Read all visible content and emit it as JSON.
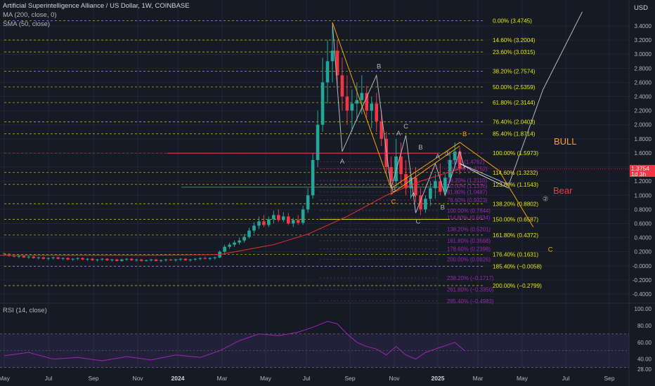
{
  "header": {
    "symbol": "Artificial Superintelligence Alliance / US Dollar, 1W, COINBASE",
    "ma": "MA (200, close, 0)",
    "sma": "SMA (50, close)",
    "rsi": "RSI (14, close)",
    "currency": "USD"
  },
  "price_tag": {
    "value": "1.3754",
    "countdown": "1d 3h"
  },
  "labels": {
    "bull": "BULL",
    "bear": "Bear"
  },
  "colors": {
    "background": "#161a25",
    "up": "#26a69a",
    "down": "#f23645",
    "fib_upper": "#e6e600",
    "fib_lower": "#9c27b0",
    "sma": "#d32f2f",
    "wave": "#b2b5be",
    "fan": "#f7a600",
    "rsi_line": "#9c27b0"
  },
  "chart_data": {
    "type": "candlestick",
    "x_ticks": [
      "May",
      "Jul",
      "Sep",
      "Nov",
      "2024",
      "Mar",
      "May",
      "Jul",
      "Sep",
      "Nov",
      "2025",
      "Mar",
      "May",
      "Jul",
      "Sep"
    ],
    "y_ticks": [
      "3.4000",
      "3.2000",
      "3.0000",
      "2.8000",
      "2.6000",
      "2.4000",
      "2.2000",
      "2.0000",
      "1.8000",
      "1.6000",
      "1.4000",
      "1.2000",
      "1.0000",
      "0.8000",
      "0.6000",
      "0.4000",
      "0.2000",
      "-0.0000",
      "-0.2000",
      "-0.4000"
    ],
    "ylim": [
      -0.5,
      3.6
    ],
    "rsi_ticks": [
      "100.00",
      "80.00",
      "60.00",
      "40.00",
      "28.00"
    ],
    "fib_upper": [
      {
        "label": "0.00% (3.4745)",
        "value": 3.4745
      },
      {
        "label": "14.60% (3.2004)",
        "value": 3.2004
      },
      {
        "label": "23.60% (3.0315)",
        "value": 3.0315
      },
      {
        "label": "38.20% (2.7574)",
        "value": 2.7574
      },
      {
        "label": "50.00% (2.5359)",
        "value": 2.5359
      },
      {
        "label": "61.80% (2.3144)",
        "value": 2.3144
      },
      {
        "label": "76.40% (2.0403)",
        "value": 2.0403
      },
      {
        "label": "85.40% (1.8714)",
        "value": 1.8714
      },
      {
        "label": "100.00% (1.5973)",
        "value": 1.5973
      },
      {
        "label": "114.60% (1.3232)",
        "value": 1.3232
      },
      {
        "label": "123.60% (1.1543)",
        "value": 1.1543
      },
      {
        "label": "138.20% (0.8802)",
        "value": 0.8802
      },
      {
        "label": "150.00% (0.6587)",
        "value": 0.6587
      },
      {
        "label": "161.80% (0.4372)",
        "value": 0.4372
      },
      {
        "label": "176.40% (0.1631)",
        "value": 0.1631
      },
      {
        "label": "185.40% (−0.0058)",
        "value": -0.0058
      },
      {
        "label": "200.00% (−0.2799)",
        "value": -0.2799
      }
    ],
    "fib_lower": [
      {
        "label": "0.00% (1.4762)",
        "value": 1.4762
      },
      {
        "label": "14.60% (1.3752)",
        "value": 1.3752
      },
      {
        "label": "38.20% (1.2110)",
        "value": 1.211
      },
      {
        "label": "50.00% (1.1336)",
        "value": 1.1336
      },
      {
        "label": "61.80% (1.0487)",
        "value": 1.0487
      },
      {
        "label": "78.60% (0.9323)",
        "value": 0.9323
      },
      {
        "label": "100.00% (0.7844)",
        "value": 0.7844
      },
      {
        "label": "114.60% (0.6834)",
        "value": 0.6834
      },
      {
        "label": "138.20% (0.5201)",
        "value": 0.5201
      },
      {
        "label": "161.80% (0.3568)",
        "value": 0.3568
      },
      {
        "label": "178.60% (0.2398)",
        "value": 0.2398
      },
      {
        "label": "200.00% (0.0926)",
        "value": 0.0926
      },
      {
        "label": "238.20% (−0.1717)",
        "value": -0.1717
      },
      {
        "label": "261.80% (−0.3350)",
        "value": -0.335
      },
      {
        "label": "285.40% (−0.4983)",
        "value": -0.4983
      }
    ],
    "candles": [
      [
        0.18,
        0.18,
        0.14,
        0.17
      ],
      [
        0.17,
        0.18,
        0.13,
        0.14
      ],
      [
        0.14,
        0.15,
        0.12,
        0.13
      ],
      [
        0.13,
        0.15,
        0.11,
        0.14
      ],
      [
        0.14,
        0.15,
        0.11,
        0.12
      ],
      [
        0.12,
        0.14,
        0.1,
        0.13
      ],
      [
        0.13,
        0.14,
        0.1,
        0.11
      ],
      [
        0.11,
        0.13,
        0.09,
        0.12
      ],
      [
        0.12,
        0.13,
        0.09,
        0.1
      ],
      [
        0.1,
        0.12,
        0.08,
        0.11
      ],
      [
        0.11,
        0.13,
        0.09,
        0.12
      ],
      [
        0.12,
        0.13,
        0.09,
        0.1
      ],
      [
        0.1,
        0.12,
        0.08,
        0.11
      ],
      [
        0.11,
        0.12,
        0.08,
        0.09
      ],
      [
        0.09,
        0.11,
        0.07,
        0.1
      ],
      [
        0.1,
        0.12,
        0.08,
        0.11
      ],
      [
        0.11,
        0.12,
        0.08,
        0.09
      ],
      [
        0.09,
        0.11,
        0.07,
        0.1
      ],
      [
        0.1,
        0.11,
        0.07,
        0.08
      ],
      [
        0.08,
        0.1,
        0.06,
        0.09
      ],
      [
        0.09,
        0.11,
        0.07,
        0.1
      ],
      [
        0.1,
        0.11,
        0.07,
        0.08
      ],
      [
        0.08,
        0.1,
        0.06,
        0.09
      ],
      [
        0.09,
        0.1,
        0.06,
        0.07
      ],
      [
        0.07,
        0.1,
        0.06,
        0.09
      ],
      [
        0.09,
        0.11,
        0.07,
        0.1
      ],
      [
        0.1,
        0.11,
        0.07,
        0.08
      ],
      [
        0.08,
        0.1,
        0.06,
        0.09
      ],
      [
        0.09,
        0.1,
        0.06,
        0.07
      ],
      [
        0.07,
        0.09,
        0.06,
        0.08
      ],
      [
        0.08,
        0.1,
        0.06,
        0.09
      ],
      [
        0.09,
        0.1,
        0.06,
        0.07
      ],
      [
        0.07,
        0.09,
        0.05,
        0.08
      ],
      [
        0.08,
        0.1,
        0.06,
        0.09
      ],
      [
        0.09,
        0.1,
        0.07,
        0.08
      ],
      [
        0.08,
        0.1,
        0.06,
        0.09
      ],
      [
        0.09,
        0.11,
        0.07,
        0.1
      ],
      [
        0.1,
        0.11,
        0.07,
        0.08
      ],
      [
        0.08,
        0.1,
        0.06,
        0.09
      ],
      [
        0.09,
        0.11,
        0.07,
        0.1
      ],
      [
        0.1,
        0.12,
        0.08,
        0.11
      ],
      [
        0.11,
        0.13,
        0.09,
        0.1
      ],
      [
        0.1,
        0.12,
        0.08,
        0.11
      ],
      [
        0.11,
        0.13,
        0.09,
        0.12
      ],
      [
        0.12,
        0.22,
        0.11,
        0.2
      ],
      [
        0.2,
        0.3,
        0.18,
        0.27
      ],
      [
        0.27,
        0.33,
        0.24,
        0.3
      ],
      [
        0.3,
        0.36,
        0.27,
        0.33
      ],
      [
        0.33,
        0.4,
        0.3,
        0.36
      ],
      [
        0.36,
        0.45,
        0.33,
        0.41
      ],
      [
        0.41,
        0.54,
        0.39,
        0.5
      ],
      [
        0.5,
        0.62,
        0.46,
        0.57
      ],
      [
        0.57,
        0.7,
        0.52,
        0.63
      ],
      [
        0.63,
        0.72,
        0.55,
        0.58
      ],
      [
        0.58,
        0.7,
        0.55,
        0.66
      ],
      [
        0.66,
        0.78,
        0.6,
        0.72
      ],
      [
        0.72,
        0.8,
        0.62,
        0.65
      ],
      [
        0.65,
        0.76,
        0.62,
        0.7
      ],
      [
        0.7,
        0.75,
        0.58,
        0.6
      ],
      [
        0.6,
        0.68,
        0.55,
        0.65
      ],
      [
        0.65,
        0.72,
        0.58,
        0.61
      ],
      [
        0.61,
        0.85,
        0.58,
        0.8
      ],
      [
        0.8,
        1.1,
        0.75,
        1.0
      ],
      [
        1.0,
        1.6,
        0.95,
        1.5
      ],
      [
        1.5,
        2.2,
        1.4,
        2.0
      ],
      [
        2.0,
        2.95,
        1.9,
        2.6
      ],
      [
        2.6,
        3.2,
        2.3,
        2.9
      ],
      [
        2.9,
        3.4,
        2.6,
        3.05
      ],
      [
        3.05,
        3.2,
        2.5,
        2.7
      ],
      [
        2.7,
        2.95,
        2.2,
        2.4
      ],
      [
        2.4,
        2.7,
        2.0,
        2.2
      ],
      [
        2.2,
        2.5,
        1.9,
        2.3
      ],
      [
        2.3,
        2.6,
        2.05,
        2.35
      ],
      [
        2.35,
        2.7,
        2.15,
        2.45
      ],
      [
        2.45,
        2.55,
        2.1,
        2.2
      ],
      [
        2.2,
        2.4,
        1.95,
        2.3
      ],
      [
        2.3,
        2.45,
        1.9,
        2.05
      ],
      [
        2.05,
        2.2,
        1.7,
        1.8
      ],
      [
        1.8,
        1.9,
        1.3,
        1.4
      ],
      [
        1.4,
        1.55,
        1.0,
        1.2
      ],
      [
        1.2,
        1.8,
        1.1,
        1.55
      ],
      [
        1.55,
        1.75,
        1.15,
        1.3
      ],
      [
        1.3,
        1.5,
        1.0,
        1.1
      ],
      [
        1.1,
        1.3,
        0.95,
        1.25
      ],
      [
        1.25,
        1.4,
        0.9,
        1.0
      ],
      [
        1.0,
        1.1,
        0.72,
        0.8
      ],
      [
        0.8,
        1.0,
        0.75,
        0.95
      ],
      [
        0.95,
        1.2,
        0.85,
        1.1
      ],
      [
        1.1,
        1.3,
        0.95,
        1.2
      ],
      [
        1.2,
        1.45,
        1.0,
        1.05
      ],
      [
        1.05,
        1.3,
        1.0,
        1.25
      ],
      [
        1.25,
        1.6,
        1.2,
        1.5
      ],
      [
        1.5,
        1.75,
        1.4,
        1.62
      ],
      [
        1.62,
        1.68,
        1.3,
        1.38
      ]
    ],
    "sma50": [
      [
        -1,
        0.15
      ],
      [
        30,
        0.15
      ],
      [
        44,
        0.16
      ],
      [
        55,
        0.3
      ],
      [
        62,
        0.45
      ],
      [
        70,
        0.7
      ],
      [
        78,
        1.0
      ],
      [
        85,
        1.2
      ],
      [
        94,
        1.4
      ]
    ],
    "rsi": [
      [
        0,
        44
      ],
      [
        5,
        48
      ],
      [
        10,
        40
      ],
      [
        15,
        42
      ],
      [
        20,
        38
      ],
      [
        25,
        43
      ],
      [
        30,
        39
      ],
      [
        35,
        45
      ],
      [
        40,
        42
      ],
      [
        44,
        50
      ],
      [
        48,
        62
      ],
      [
        52,
        70
      ],
      [
        56,
        68
      ],
      [
        60,
        72
      ],
      [
        63,
        78
      ],
      [
        66,
        85
      ],
      [
        68,
        82
      ],
      [
        70,
        70
      ],
      [
        72,
        60
      ],
      [
        74,
        55
      ],
      [
        76,
        52
      ],
      [
        78,
        45
      ],
      [
        80,
        55
      ],
      [
        82,
        45
      ],
      [
        84,
        40
      ],
      [
        86,
        48
      ],
      [
        88,
        52
      ],
      [
        90,
        56
      ],
      [
        92,
        60
      ],
      [
        94,
        50
      ]
    ]
  }
}
